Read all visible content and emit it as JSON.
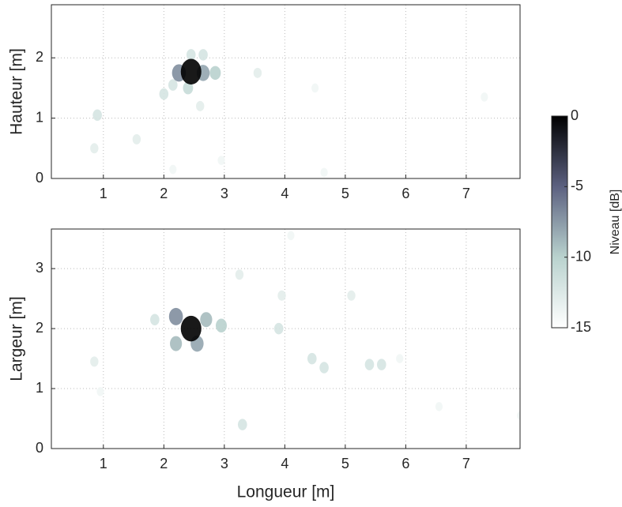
{
  "chart_data": [
    {
      "type": "map",
      "ylabel": "Hauteur [m]",
      "xlim": [
        0.14,
        7.89
      ],
      "ylim": [
        0,
        2.88
      ],
      "xticks": [
        1,
        2,
        3,
        4,
        5,
        6,
        7
      ],
      "yticks": [
        0,
        1,
        2
      ],
      "grid": true,
      "colormap": [
        "#ffffff",
        "#b9d2ce",
        "#5c6180",
        "#000000"
      ],
      "colorbar": {
        "label": "Niveau [dB]",
        "clim": [
          -15,
          0
        ],
        "cticks": [
          0,
          -5,
          -10,
          -15
        ]
      },
      "x": [
        2.45,
        2.25,
        2.65,
        2.85,
        2.4,
        2.45,
        2.65,
        2.0,
        2.15,
        0.9,
        0.85,
        1.55,
        3.55,
        4.5,
        7.3,
        2.6,
        2.15,
        4.65,
        2.95
      ],
      "y": [
        1.77,
        1.75,
        1.75,
        1.75,
        1.5,
        2.05,
        2.05,
        1.4,
        1.55,
        1.05,
        0.5,
        0.65,
        1.75,
        1.5,
        1.35,
        1.2,
        0.15,
        0.1,
        0.3
      ],
      "values": [
        0,
        -7,
        -8,
        -10,
        -11,
        -12,
        -12,
        -12,
        -12,
        -12,
        -13,
        -13,
        -13,
        -14,
        -14,
        -13,
        -14,
        -14,
        -14
      ]
    },
    {
      "type": "map",
      "xlabel": "Longueur [m]",
      "ylabel": "Largeur [m]",
      "xlim": [
        0.14,
        7.89
      ],
      "ylim": [
        0,
        3.66
      ],
      "xticks": [
        1,
        2,
        3,
        4,
        5,
        6,
        7
      ],
      "yticks": [
        0,
        1,
        2,
        3
      ],
      "grid": true,
      "x": [
        2.45,
        2.2,
        2.55,
        2.7,
        2.2,
        2.95,
        1.85,
        3.3,
        3.95,
        3.9,
        4.45,
        4.65,
        5.1,
        5.4,
        5.6,
        0.85,
        3.25,
        4.1,
        6.55,
        0.95,
        7.9,
        5.9
      ],
      "y": [
        2.0,
        2.2,
        1.75,
        2.15,
        1.75,
        2.05,
        2.15,
        0.4,
        2.55,
        2.0,
        1.5,
        1.35,
        2.55,
        1.4,
        1.4,
        1.45,
        2.9,
        3.55,
        0.7,
        0.95,
        0.55,
        1.5
      ],
      "values": [
        0,
        -7,
        -8,
        -9,
        -9,
        -10,
        -12,
        -12,
        -13,
        -12,
        -12,
        -12,
        -13,
        -12,
        -12,
        -13,
        -13,
        -14,
        -14,
        -14,
        -14,
        -14
      ]
    }
  ]
}
